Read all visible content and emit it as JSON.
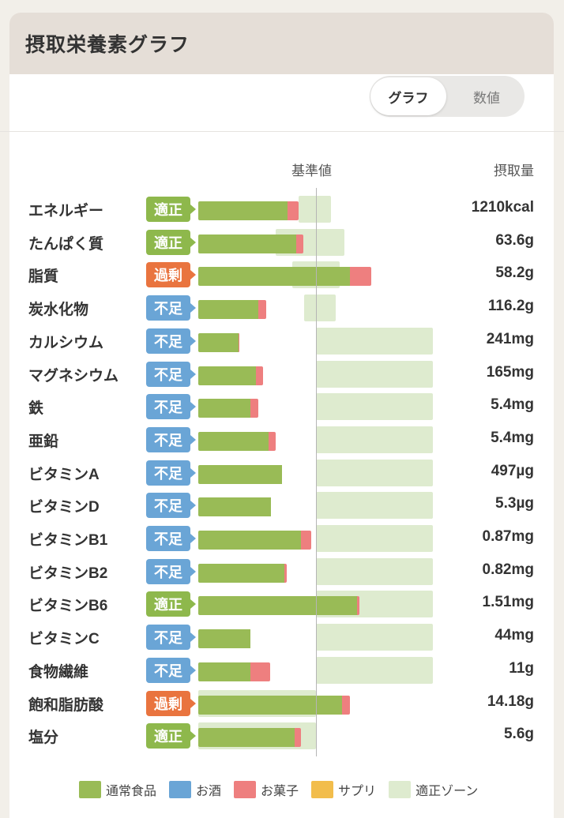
{
  "header": {
    "title": "摂取栄養素グラフ"
  },
  "toggle": {
    "graph_label": "グラフ",
    "value_label": "数値"
  },
  "columns": {
    "reference": "基準値",
    "intake": "摂取量"
  },
  "colors": {
    "food": "#99bb56",
    "alcohol": "#6aa5d6",
    "sweets": "#ee7f7f",
    "supplement": "#f2bd4c",
    "zone": "#deebcf"
  },
  "nutrients": [
    {
      "name": "エネルギー",
      "status": "適正",
      "status_type": "ok",
      "amount": "1210kcal",
      "food_pct": 76,
      "sweets_pct": 9,
      "zone_lo": 85,
      "zone_hi": 113
    },
    {
      "name": "たんぱく質",
      "status": "適正",
      "status_type": "ok",
      "amount": "63.6g",
      "food_pct": 83,
      "sweets_pct": 6,
      "zone_lo": 66,
      "zone_hi": 124
    },
    {
      "name": "脂質",
      "status": "過剰",
      "status_type": "over",
      "amount": "58.2g",
      "food_pct": 129,
      "sweets_pct": 18,
      "zone_lo": 80,
      "zone_hi": 120
    },
    {
      "name": "炭水化物",
      "status": "不足",
      "status_type": "short",
      "amount": "116.2g",
      "food_pct": 51,
      "sweets_pct": 7,
      "zone_lo": 90,
      "zone_hi": 117
    },
    {
      "name": "カルシウム",
      "status": "不足",
      "status_type": "short",
      "amount": "241mg",
      "food_pct": 34,
      "sweets_pct": 1,
      "zone_lo": 100,
      "zone_hi": 199
    },
    {
      "name": "マグネシウム",
      "status": "不足",
      "status_type": "short",
      "amount": "165mg",
      "food_pct": 49,
      "sweets_pct": 6,
      "zone_lo": 100,
      "zone_hi": 199
    },
    {
      "name": "鉄",
      "status": "不足",
      "status_type": "short",
      "amount": "5.4mg",
      "food_pct": 44,
      "sweets_pct": 7,
      "zone_lo": 100,
      "zone_hi": 199
    },
    {
      "name": "亜鉛",
      "status": "不足",
      "status_type": "short",
      "amount": "5.4mg",
      "food_pct": 60,
      "sweets_pct": 6,
      "zone_lo": 100,
      "zone_hi": 199
    },
    {
      "name": "ビタミンA",
      "status": "不足",
      "status_type": "short",
      "amount": "497µg",
      "food_pct": 71,
      "sweets_pct": 0,
      "zone_lo": 100,
      "zone_hi": 199
    },
    {
      "name": "ビタミンD",
      "status": "不足",
      "status_type": "short",
      "amount": "5.3µg",
      "food_pct": 62,
      "sweets_pct": 0,
      "zone_lo": 100,
      "zone_hi": 199
    },
    {
      "name": "ビタミンB1",
      "status": "不足",
      "status_type": "short",
      "amount": "0.87mg",
      "food_pct": 87,
      "sweets_pct": 9,
      "zone_lo": 100,
      "zone_hi": 199
    },
    {
      "name": "ビタミンB2",
      "status": "不足",
      "status_type": "short",
      "amount": "0.82mg",
      "food_pct": 73,
      "sweets_pct": 2,
      "zone_lo": 100,
      "zone_hi": 199
    },
    {
      "name": "ビタミンB6",
      "status": "適正",
      "status_type": "ok",
      "amount": "1.51mg",
      "food_pct": 135,
      "sweets_pct": 2,
      "zone_lo": 100,
      "zone_hi": 199
    },
    {
      "name": "ビタミンC",
      "status": "不足",
      "status_type": "short",
      "amount": "44mg",
      "food_pct": 44,
      "sweets_pct": 0,
      "zone_lo": 100,
      "zone_hi": 199
    },
    {
      "name": "食物繊維",
      "status": "不足",
      "status_type": "short",
      "amount": "11g",
      "food_pct": 44,
      "sweets_pct": 17,
      "zone_lo": 100,
      "zone_hi": 199
    },
    {
      "name": "飽和脂肪酸",
      "status": "過剰",
      "status_type": "over",
      "amount": "14.18g",
      "food_pct": 122,
      "sweets_pct": 7,
      "zone_lo": 0,
      "zone_hi": 100
    },
    {
      "name": "塩分",
      "status": "適正",
      "status_type": "ok",
      "amount": "5.6g",
      "food_pct": 82,
      "sweets_pct": 5,
      "zone_lo": 0,
      "zone_hi": 100
    }
  ],
  "legend": [
    {
      "label": "通常食品",
      "color": "#99bb56"
    },
    {
      "label": "お酒",
      "color": "#6aa5d6"
    },
    {
      "label": "お菓子",
      "color": "#ee7f7f"
    },
    {
      "label": "サプリ",
      "color": "#f2bd4c"
    },
    {
      "label": "適正ゾーン",
      "color": "#deebcf"
    }
  ]
}
